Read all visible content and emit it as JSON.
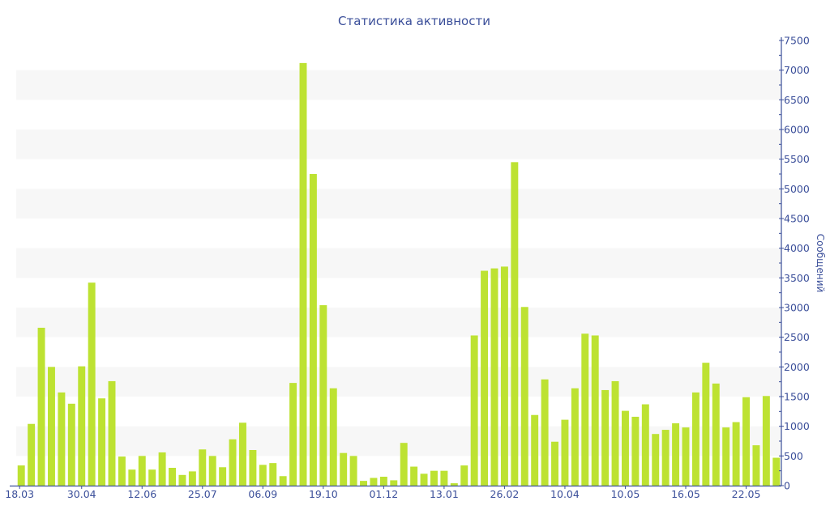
{
  "chart_data": {
    "type": "bar",
    "title": "Статистика активности",
    "ylabel": "Сообщений",
    "xlabel": "",
    "ylim": [
      0,
      7500
    ],
    "y_ticks": [
      0,
      500,
      1000,
      1500,
      2000,
      2500,
      3000,
      3500,
      4000,
      4500,
      5000,
      5500,
      6000,
      6500,
      7000,
      7500
    ],
    "y_axis_position": "right",
    "grid": "alternating horizontal bands",
    "legend": "none",
    "bar_color": "#bde232",
    "axis_color": "#3b4f9a",
    "categories": [
      "18.03",
      "",
      "",
      "",
      "",
      "",
      "30.04",
      "",
      "",
      "",
      "",
      "",
      "12.06",
      "",
      "",
      "",
      "",
      "",
      "25.07",
      "",
      "",
      "",
      "",
      "",
      "06.09",
      "",
      "",
      "",
      "",
      "",
      "19.10",
      "",
      "",
      "",
      "",
      "",
      "01.12",
      "",
      "",
      "",
      "",
      "",
      "13.01",
      "",
      "",
      "",
      "",
      "",
      "26.02",
      "",
      "",
      "",
      "",
      "",
      "10.04",
      "",
      "",
      "",
      "",
      "",
      "10.05",
      "",
      "",
      "",
      "",
      "",
      "16.05",
      "",
      "",
      "",
      "",
      "",
      "22.05",
      "",
      "",
      ""
    ],
    "values": [
      340,
      1040,
      2660,
      2000,
      1570,
      1380,
      2010,
      3420,
      1470,
      1760,
      490,
      270,
      500,
      270,
      560,
      300,
      180,
      240,
      610,
      500,
      310,
      780,
      1060,
      600,
      350,
      380,
      160,
      1730,
      7120,
      5250,
      3040,
      1640,
      550,
      500,
      80,
      130,
      150,
      90,
      720,
      320,
      200,
      250,
      250,
      40,
      340,
      2530,
      3620,
      3660,
      3690,
      5450,
      3010,
      1190,
      1790,
      740,
      1110,
      1640,
      2560,
      2530,
      1610,
      1760,
      1260,
      1160,
      1370,
      870,
      940,
      1050,
      980,
      1570,
      2070,
      1720,
      980,
      1070,
      1490,
      680,
      1510,
      470
    ]
  }
}
